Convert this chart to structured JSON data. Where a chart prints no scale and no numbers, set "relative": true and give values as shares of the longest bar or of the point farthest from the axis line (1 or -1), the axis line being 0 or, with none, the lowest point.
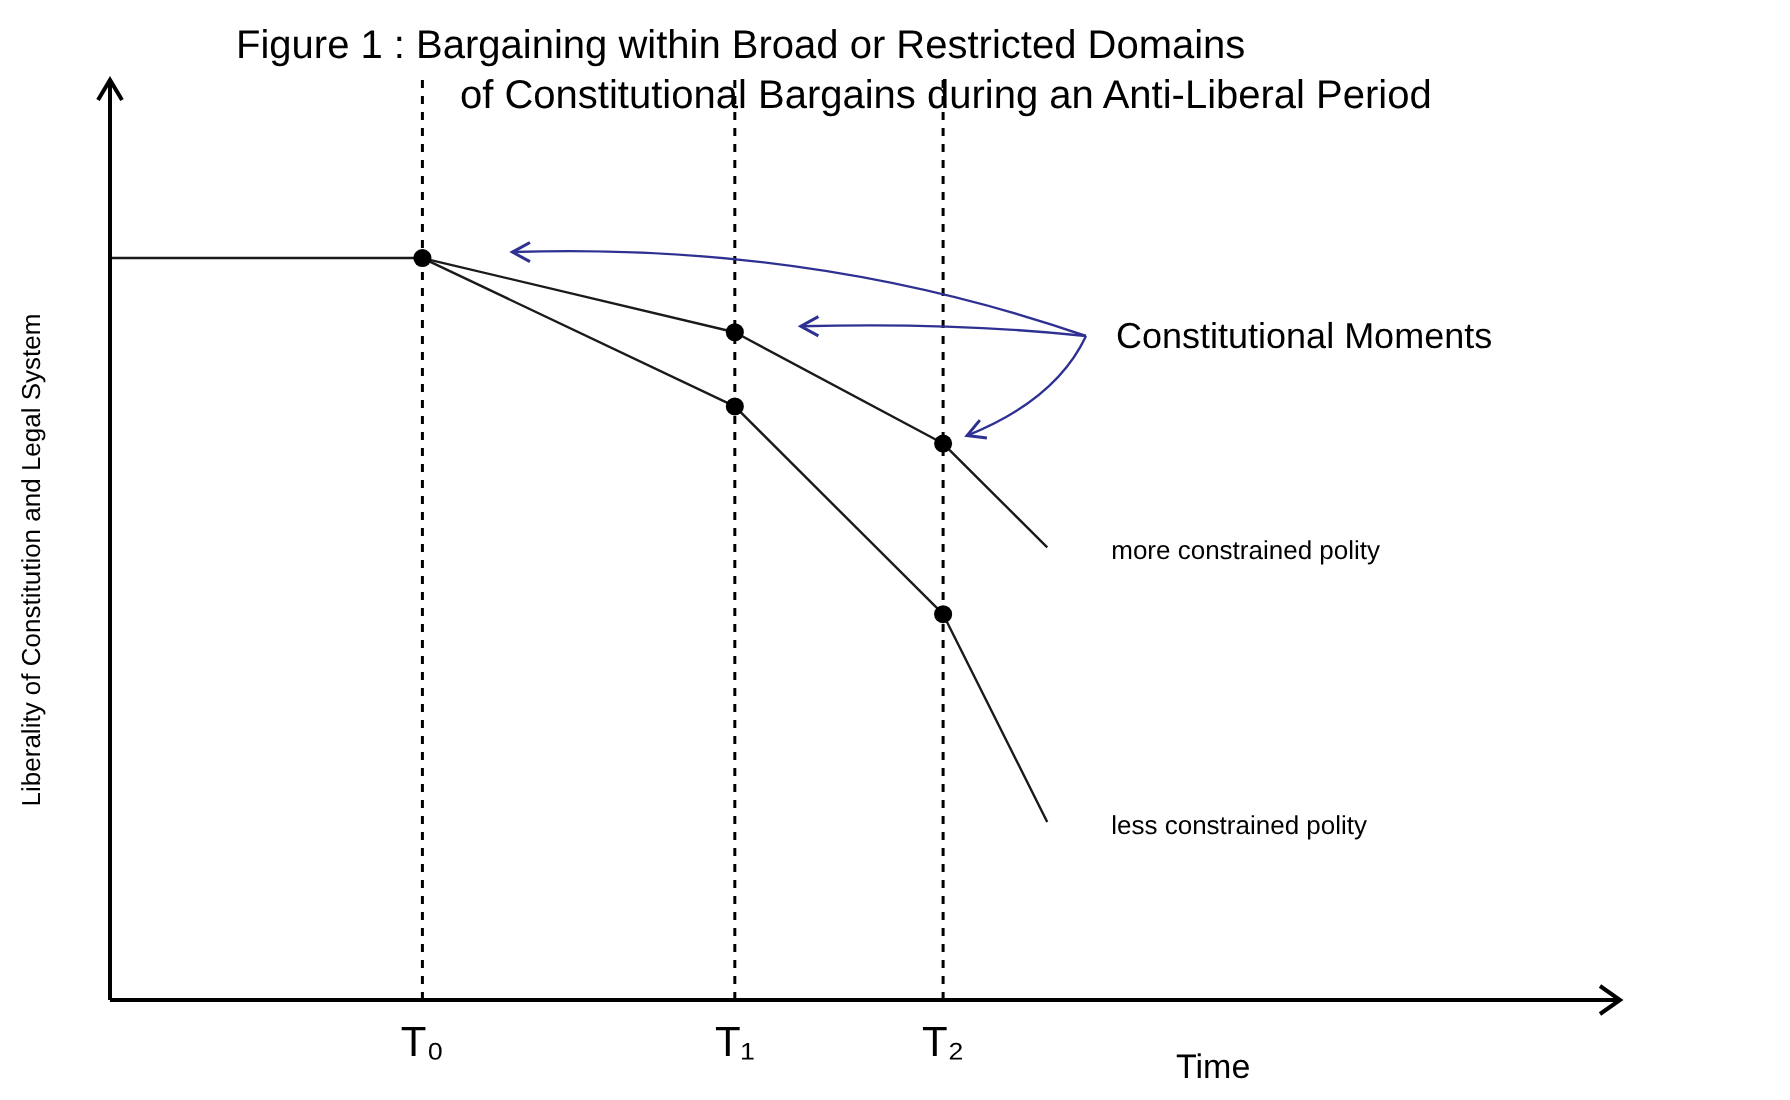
{
  "chart_data": {
    "type": "line",
    "title": "Figure 1 : Bargaining within Broad or Restricted Domains\nof Constitutional Bargains during an Anti-Liberal Period",
    "xlabel": "Time",
    "ylabel": "Liberality of Constitution and Legal System",
    "relative": true,
    "line_style": "solid",
    "categories": [
      null,
      null,
      null,
      "T₀",
      null,
      null,
      "T₁",
      null,
      "T₂",
      null,
      null,
      null,
      null,
      null,
      null
    ],
    "series": [
      {
        "name": "more constrained polity",
        "marker": "none",
        "color": "#1a1a1a",
        "values": [
          1,
          null,
          null,
          1,
          null,
          null,
          0.9,
          null,
          0.75,
          0.61,
          null,
          null,
          null,
          null,
          null
        ]
      },
      {
        "name": "less constrained polity",
        "marker": "none",
        "color": "#1a1a1a",
        "values": [
          null,
          null,
          null,
          1,
          null,
          null,
          0.8,
          null,
          0.52,
          0.24,
          null,
          null,
          null,
          null,
          null
        ]
      },
      {
        "type": "scatter",
        "marker": "circle",
        "color": "#000000",
        "x": [
          "T₀",
          "T₁",
          "T₁",
          "T₂",
          "T₂"
        ],
        "values": [
          1,
          0.9,
          0.8,
          0.75,
          0.52
        ]
      }
    ],
    "ref_lines": [
      {
        "axis": "x",
        "value": "T₀",
        "line_style": "dashed",
        "color": "#000000"
      },
      {
        "axis": "x",
        "value": "T₁",
        "line_style": "dashed",
        "color": "#000000"
      },
      {
        "axis": "x",
        "value": "T₂",
        "line_style": "dashed",
        "color": "#000000"
      }
    ],
    "annotations": [
      "Constitutional Moments"
    ]
  }
}
